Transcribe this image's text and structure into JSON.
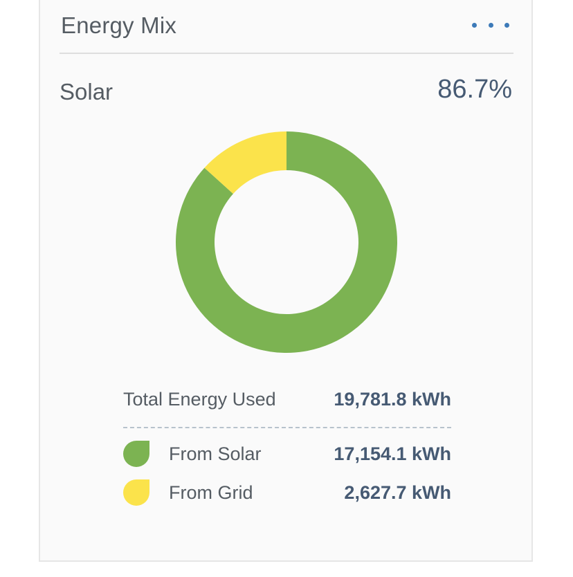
{
  "header": {
    "title": "Energy Mix",
    "menu_icon": "more-horizontal-icon"
  },
  "metric": {
    "label": "Solar",
    "value": "86.7%"
  },
  "chart_data": {
    "type": "pie",
    "donut": true,
    "categories": [
      "From Solar",
      "From Grid"
    ],
    "values": [
      17154.1,
      2627.7
    ],
    "colors": [
      "#7cb352",
      "#fbe34b"
    ]
  },
  "summary": {
    "total_label": "Total Energy Used",
    "total_value": "19,781.8 kWh",
    "legend": [
      {
        "label": "From Solar",
        "value": "17,154.1 kWh",
        "color": "#7cb352"
      },
      {
        "label": "From Grid",
        "value": "2,627.7 kWh",
        "color": "#fbe34b"
      }
    ]
  }
}
